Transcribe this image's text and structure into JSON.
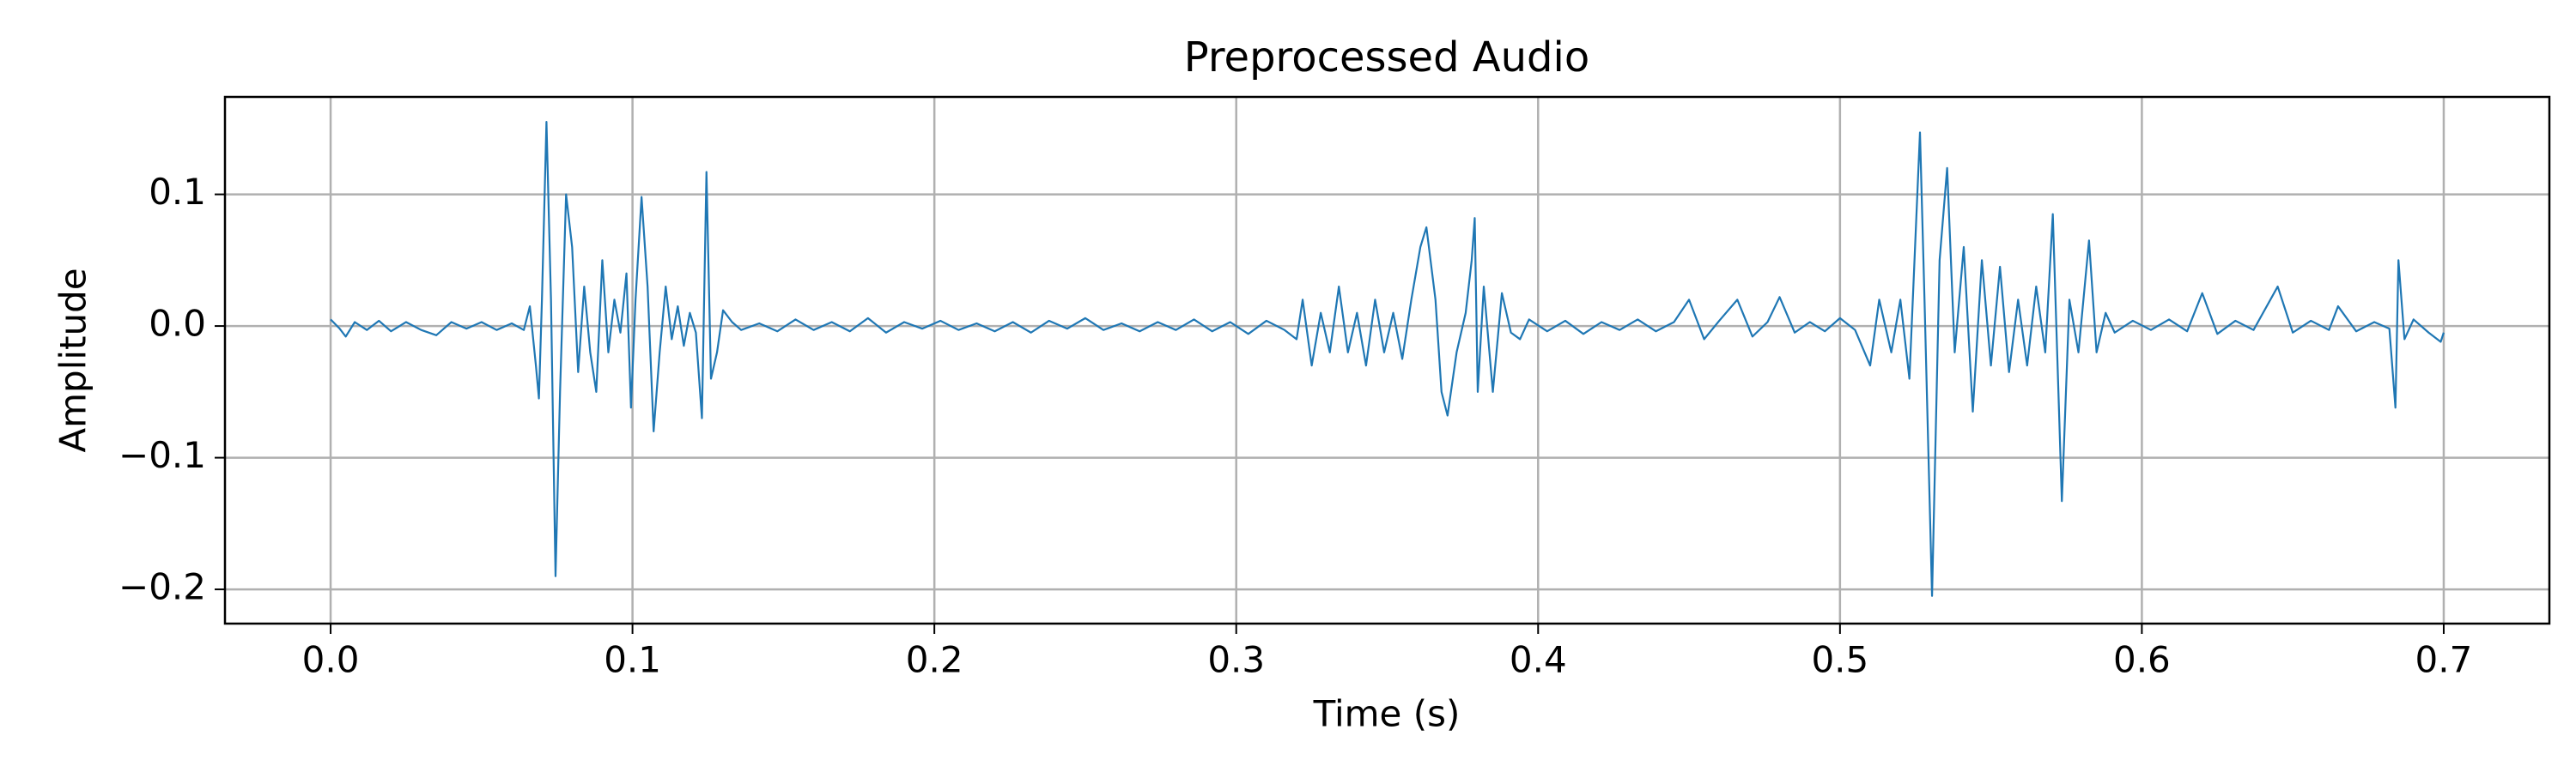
{
  "chart_data": {
    "type": "line",
    "title": "Preprocessed Audio",
    "xlabel": "Time (s)",
    "ylabel": "Amplitude",
    "series": [
      {
        "name": "Audio",
        "color": "#1f77b4",
        "x": [
          0,
          0.003,
          0.005,
          0.008,
          0.012,
          0.016,
          0.02,
          0.025,
          0.03,
          0.035,
          0.04,
          0.045,
          0.05,
          0.055,
          0.06,
          0.064,
          0.066,
          0.068,
          0.069,
          0.07,
          0.0715,
          0.073,
          0.0745,
          0.076,
          0.078,
          0.08,
          0.082,
          0.084,
          0.086,
          0.088,
          0.09,
          0.092,
          0.094,
          0.096,
          0.098,
          0.0995,
          0.101,
          0.103,
          0.105,
          0.107,
          0.109,
          0.111,
          0.113,
          0.115,
          0.117,
          0.119,
          0.121,
          0.123,
          0.1245,
          0.126,
          0.128,
          0.13,
          0.133,
          0.136,
          0.142,
          0.148,
          0.154,
          0.16,
          0.166,
          0.172,
          0.178,
          0.184,
          0.19,
          0.196,
          0.202,
          0.208,
          0.214,
          0.22,
          0.226,
          0.232,
          0.238,
          0.244,
          0.25,
          0.256,
          0.262,
          0.268,
          0.274,
          0.28,
          0.286,
          0.292,
          0.298,
          0.304,
          0.31,
          0.316,
          0.32,
          0.322,
          0.325,
          0.328,
          0.331,
          0.334,
          0.337,
          0.34,
          0.343,
          0.346,
          0.349,
          0.352,
          0.355,
          0.358,
          0.361,
          0.363,
          0.366,
          0.368,
          0.37,
          0.373,
          0.376,
          0.378,
          0.379,
          0.38,
          0.382,
          0.385,
          0.388,
          0.391,
          0.394,
          0.397,
          0.403,
          0.409,
          0.415,
          0.421,
          0.427,
          0.433,
          0.439,
          0.445,
          0.45,
          0.455,
          0.46,
          0.466,
          0.471,
          0.476,
          0.48,
          0.485,
          0.49,
          0.495,
          0.5,
          0.505,
          0.51,
          0.513,
          0.517,
          0.52,
          0.523,
          0.5265,
          0.528,
          0.5305,
          0.533,
          0.5355,
          0.538,
          0.541,
          0.544,
          0.547,
          0.55,
          0.553,
          0.556,
          0.559,
          0.562,
          0.565,
          0.568,
          0.5705,
          0.5735,
          0.576,
          0.579,
          0.5825,
          0.585,
          0.588,
          0.591,
          0.597,
          0.603,
          0.609,
          0.615,
          0.62,
          0.625,
          0.631,
          0.637,
          0.645,
          0.65,
          0.656,
          0.662,
          0.665,
          0.671,
          0.677,
          0.682,
          0.684,
          0.685,
          0.687,
          0.69,
          0.695,
          0.699,
          0.7
        ],
        "values": [
          0.005,
          -0.002,
          -0.008,
          0.003,
          -0.003,
          0.004,
          -0.004,
          0.003,
          -0.003,
          -0.007,
          0.003,
          -0.002,
          0.003,
          -0.003,
          0.002,
          -0.003,
          0.015,
          -0.03,
          -0.055,
          0.02,
          0.155,
          0.02,
          -0.19,
          -0.05,
          0.1,
          0.06,
          -0.035,
          0.03,
          -0.02,
          -0.05,
          0.05,
          -0.02,
          0.02,
          -0.005,
          0.04,
          -0.062,
          0.02,
          0.098,
          0.03,
          -0.08,
          -0.02,
          0.03,
          -0.01,
          0.015,
          -0.015,
          0.01,
          -0.005,
          -0.07,
          0.117,
          -0.04,
          -0.02,
          0.012,
          0.003,
          -0.003,
          0.002,
          -0.004,
          0.005,
          -0.003,
          0.003,
          -0.004,
          0.006,
          -0.005,
          0.003,
          -0.002,
          0.004,
          -0.003,
          0.002,
          -0.004,
          0.003,
          -0.005,
          0.004,
          -0.002,
          0.006,
          -0.003,
          0.002,
          -0.004,
          0.003,
          -0.003,
          0.005,
          -0.004,
          0.003,
          -0.006,
          0.004,
          -0.003,
          -0.01,
          0.02,
          -0.03,
          0.01,
          -0.02,
          0.03,
          -0.02,
          0.01,
          -0.03,
          0.02,
          -0.02,
          0.01,
          -0.025,
          0.02,
          0.06,
          0.075,
          0.02,
          -0.05,
          -0.068,
          -0.02,
          0.01,
          0.05,
          0.082,
          -0.05,
          0.03,
          -0.05,
          0.025,
          -0.005,
          -0.01,
          0.005,
          -0.004,
          0.004,
          -0.006,
          0.003,
          -0.003,
          0.005,
          -0.004,
          0.003,
          0.02,
          -0.01,
          0.004,
          0.02,
          -0.008,
          0.003,
          0.022,
          -0.005,
          0.003,
          -0.004,
          0.006,
          -0.003,
          -0.03,
          0.02,
          -0.02,
          0.02,
          -0.04,
          0.147,
          0.02,
          -0.205,
          0.05,
          0.12,
          -0.02,
          0.06,
          -0.065,
          0.05,
          -0.03,
          0.045,
          -0.035,
          0.02,
          -0.03,
          0.03,
          -0.02,
          0.085,
          -0.133,
          0.02,
          -0.02,
          0.065,
          -0.02,
          0.01,
          -0.005,
          0.004,
          -0.003,
          0.005,
          -0.004,
          0.025,
          -0.006,
          0.004,
          -0.003,
          0.03,
          -0.005,
          0.004,
          -0.003,
          0.015,
          -0.004,
          0.003,
          -0.002,
          -0.062,
          0.05,
          -0.01,
          0.005,
          -0.005,
          -0.012,
          -0.005
        ]
      }
    ],
    "xlim": [
      -0.035,
      0.735
    ],
    "ylim": [
      -0.226,
      0.174
    ],
    "xticks": [
      {
        "value": 0,
        "label": "0.0"
      },
      0.1,
      0.2,
      0.3,
      0.4,
      0.5,
      0.6,
      0.7
    ],
    "yticks": [
      {
        "value": -0.2,
        "label": "−0.2"
      },
      {
        "value": -0.1,
        "label": "−0.1"
      },
      {
        "value": 0,
        "label": "0.0"
      },
      0.1
    ],
    "grid": true
  }
}
